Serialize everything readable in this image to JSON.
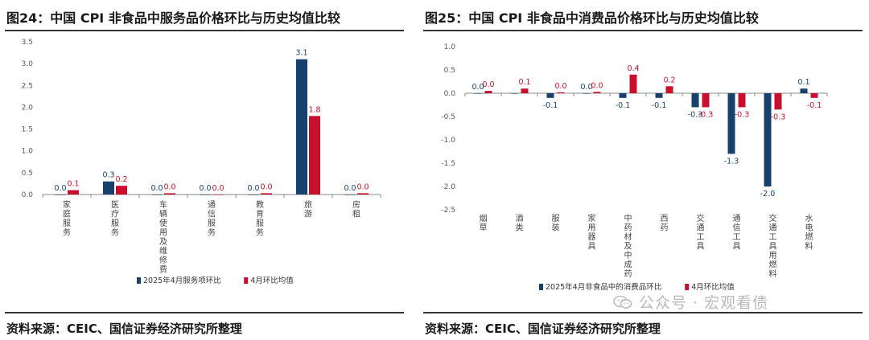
{
  "colors": {
    "blue": "#17406D",
    "red": "#C8102E",
    "axis": "#888888"
  },
  "left": {
    "title": "图24：中国 CPI 非食品中服务品价格环比与历史均值比较",
    "source": "资料来源：CEIC、国信证券经济研究所整理",
    "chart_data": {
      "type": "bar",
      "categories": [
        "家庭服务",
        "医疗服务",
        "车辆使用及维修费",
        "通信服务",
        "教育服务",
        "旅游",
        "房租"
      ],
      "series": [
        {
          "name": "2025年4月服务项环比",
          "values": [
            0.0,
            0.3,
            0.0,
            0.0,
            0.0,
            3.1,
            0.0
          ],
          "labels": [
            "0.0",
            "0.3",
            "0.0",
            "0.0",
            "0.0",
            "3.1",
            "0.0"
          ],
          "color": "#17406D"
        },
        {
          "name": "4月环比均值",
          "values": [
            0.1,
            0.2,
            0.03,
            0.0,
            0.03,
            1.8,
            0.03
          ],
          "labels": [
            "0.1",
            "0.2",
            "0.0",
            "0.0",
            "0.0",
            "1.8",
            "0.0"
          ],
          "color": "#C8102E"
        }
      ],
      "yticks": [
        "3.5",
        "3.0",
        "2.5",
        "2.0",
        "1.5",
        "1.0",
        "0.5",
        "0.0"
      ],
      "ylim": [
        0,
        3.5
      ],
      "legend_position": "bottom-right"
    }
  },
  "right": {
    "title": "图25：中国 CPI 非食品中消费品价格环比与历史均值比较",
    "source": "资料来源：CEIC、国信证券经济研究所整理",
    "chart_data": {
      "type": "bar",
      "categories": [
        "烟草",
        "酒类",
        "服装",
        "家用器具",
        "中药材及中成药",
        "西药",
        "交通工具",
        "通信工具",
        "交通工具用燃料",
        "水电燃料"
      ],
      "series": [
        {
          "name": "2025年4月非食品中的消费品环比",
          "values": [
            0.0,
            0.0,
            -0.1,
            0.0,
            -0.1,
            -0.1,
            -0.3,
            -1.3,
            -2.0,
            0.1
          ],
          "labels": [
            "0.0",
            "",
            "-0.1",
            "0.0",
            "-0.1",
            "-0.1",
            "-0.3",
            "-1.3",
            "-2.0",
            "0.1"
          ],
          "color": "#17406D"
        },
        {
          "name": "4月环比均值",
          "values": [
            0.05,
            0.1,
            0.02,
            0.03,
            0.4,
            0.15,
            -0.3,
            -0.3,
            -0.35,
            -0.1
          ],
          "labels": [
            "0.0",
            "0.1",
            "0.0",
            "0.0",
            "0.4",
            "0.2",
            "-0.3",
            "-0.3",
            "-0.3",
            "-0.1"
          ],
          "color": "#C8102E"
        }
      ],
      "yticks": [
        "1.0",
        "0.5",
        "0.0",
        "-0.5",
        "-1.0",
        "-1.5",
        "-2.0",
        "-2.5"
      ],
      "ylim": [
        -2.5,
        1.0
      ],
      "legend_position": "bottom-right"
    }
  },
  "watermark": "公众号 · 宏观看债"
}
